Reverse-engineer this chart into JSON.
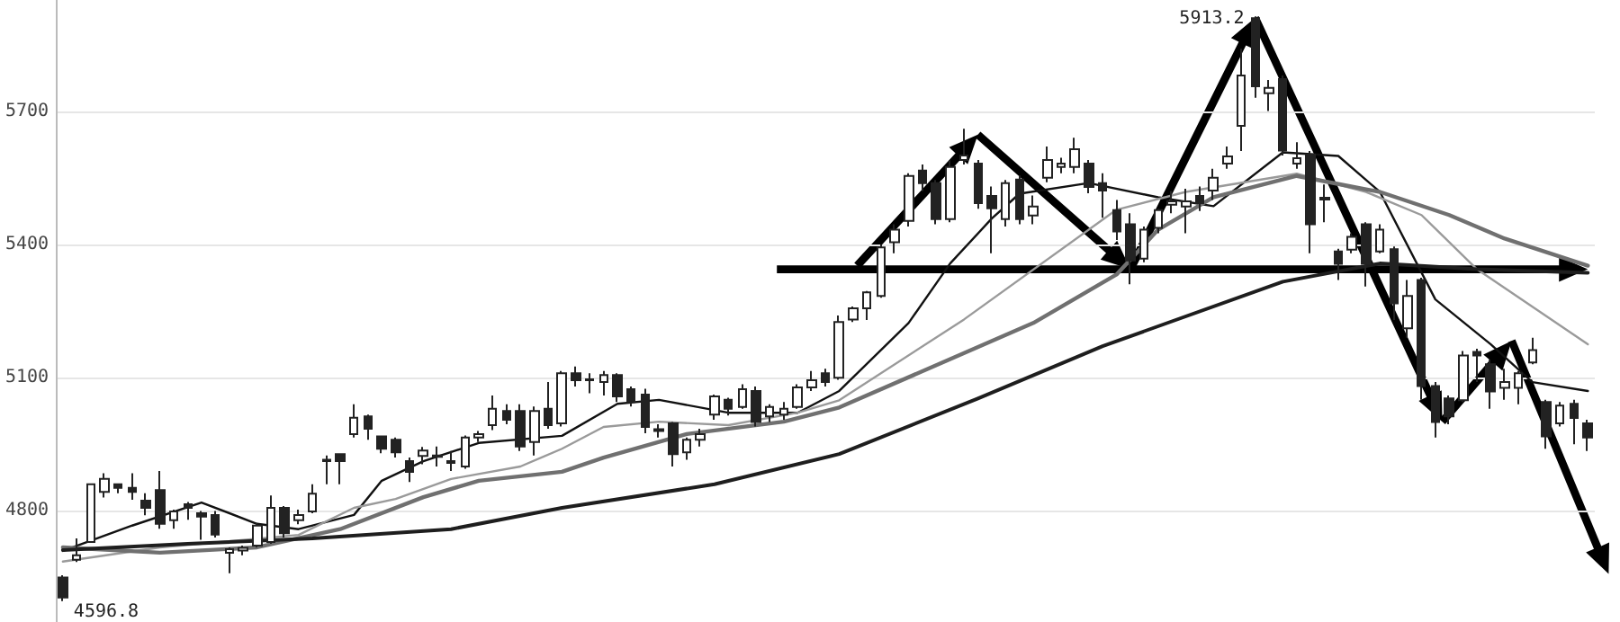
{
  "chart_data": {
    "type": "candlestick",
    "categories": [
      null,
      null,
      null,
      null,
      null,
      null,
      null,
      null,
      null,
      null,
      null,
      null,
      null,
      null,
      null,
      null,
      null,
      null,
      null,
      null,
      null,
      null,
      null,
      null,
      null,
      null,
      null,
      null,
      null,
      null,
      null,
      null,
      null,
      null,
      null,
      null,
      null,
      null,
      null,
      null,
      null,
      null,
      null,
      null,
      null,
      null,
      null,
      null,
      null,
      null,
      null,
      null,
      null,
      null,
      null,
      null,
      null,
      null,
      null,
      null,
      null,
      null,
      null,
      null,
      null,
      null,
      null,
      null,
      null,
      null,
      null,
      null,
      null,
      null,
      null,
      null,
      null,
      null,
      null,
      null,
      null,
      null,
      null,
      null,
      null,
      null,
      null,
      null,
      null,
      null,
      null,
      null,
      null,
      null,
      null,
      null,
      null,
      null,
      null,
      null,
      null,
      null,
      null,
      null,
      null,
      null,
      null,
      null,
      null,
      null,
      null
    ],
    "ohlc": [
      [
        4650,
        4655,
        4596.8,
        4605
      ],
      [
        4690,
        4738,
        4685,
        4700
      ],
      [
        4730,
        4862,
        4728,
        4860
      ],
      [
        4843,
        4885,
        4830,
        4872
      ],
      [
        4860,
        4862,
        4840,
        4852
      ],
      [
        4852,
        4885,
        4825,
        4843
      ],
      [
        4823,
        4840,
        4790,
        4807
      ],
      [
        4847,
        4890,
        4760,
        4771
      ],
      [
        4779,
        4803,
        4760,
        4799
      ],
      [
        4815,
        4820,
        4780,
        4807
      ],
      [
        4795,
        4800,
        4735,
        4787
      ],
      [
        4791,
        4800,
        4740,
        4747
      ],
      [
        4706,
        4718,
        4660,
        4714
      ],
      [
        4711,
        4722,
        4700,
        4717
      ],
      [
        4722,
        4773,
        4718,
        4767
      ],
      [
        4730,
        4835,
        4726,
        4807
      ],
      [
        4807,
        4811,
        4740,
        4750
      ],
      [
        4779,
        4803,
        4770,
        4791
      ],
      [
        4799,
        4860,
        4795,
        4839
      ],
      [
        4912,
        4925,
        4860,
        4915
      ],
      [
        4928,
        4930,
        4860,
        4912
      ],
      [
        4973,
        5040,
        4965,
        5010
      ],
      [
        5013,
        5017,
        4960,
        4985
      ],
      [
        4968,
        4970,
        4930,
        4940
      ],
      [
        4960,
        4965,
        4920,
        4932
      ],
      [
        4912,
        4920,
        4865,
        4888
      ],
      [
        4924,
        4944,
        4905,
        4936
      ],
      [
        4922,
        4945,
        4900,
        4925
      ],
      [
        4908,
        4935,
        4890,
        4912
      ],
      [
        4900,
        4970,
        4895,
        4965
      ],
      [
        4965,
        4980,
        4955,
        4973
      ],
      [
        4993,
        5060,
        4982,
        5030
      ],
      [
        5025,
        5040,
        4995,
        5005
      ],
      [
        5025,
        5040,
        4935,
        4945
      ],
      [
        4955,
        5035,
        4925,
        5025
      ],
      [
        5030,
        5090,
        4985,
        4993
      ],
      [
        4997,
        5115,
        4990,
        5110
      ],
      [
        5110,
        5125,
        5080,
        5094
      ],
      [
        5094,
        5110,
        5065,
        5096
      ],
      [
        5090,
        5115,
        5060,
        5106
      ],
      [
        5106,
        5110,
        5045,
        5058
      ],
      [
        5074,
        5080,
        5035,
        5045
      ],
      [
        5062,
        5075,
        4975,
        4989
      ],
      [
        4980,
        4995,
        4965,
        4984
      ],
      [
        4997,
        5000,
        4900,
        4928
      ],
      [
        4932,
        4965,
        4915,
        4960
      ],
      [
        4960,
        4985,
        4945,
        4973
      ],
      [
        5017,
        5062,
        5005,
        5058
      ],
      [
        5050,
        5055,
        5015,
        5030
      ],
      [
        5034,
        5085,
        5030,
        5074
      ],
      [
        5070,
        5080,
        4990,
        5000
      ],
      [
        5013,
        5040,
        5000,
        5034
      ],
      [
        5017,
        5045,
        5005,
        5030
      ],
      [
        5034,
        5085,
        5030,
        5078
      ],
      [
        5078,
        5115,
        5070,
        5094
      ],
      [
        5110,
        5120,
        5080,
        5090
      ],
      [
        5100,
        5240,
        5095,
        5225
      ],
      [
        5231,
        5260,
        5225,
        5256
      ],
      [
        5256,
        5295,
        5230,
        5292
      ],
      [
        5284,
        5400,
        5280,
        5393
      ],
      [
        5405,
        5445,
        5380,
        5433
      ],
      [
        5453,
        5560,
        5440,
        5554
      ],
      [
        5566,
        5580,
        5520,
        5538
      ],
      [
        5538,
        5545,
        5445,
        5457
      ],
      [
        5457,
        5590,
        5450,
        5574
      ],
      [
        5590,
        5660,
        5580,
        5600
      ],
      [
        5582,
        5590,
        5480,
        5493
      ],
      [
        5509,
        5530,
        5380,
        5481
      ],
      [
        5457,
        5545,
        5440,
        5538
      ],
      [
        5546,
        5555,
        5445,
        5457
      ],
      [
        5465,
        5510,
        5445,
        5485
      ],
      [
        5550,
        5620,
        5540,
        5590
      ],
      [
        5574,
        5595,
        5560,
        5582
      ],
      [
        5574,
        5640,
        5560,
        5614
      ],
      [
        5582,
        5590,
        5515,
        5529
      ],
      [
        5538,
        5560,
        5460,
        5521
      ],
      [
        5477,
        5500,
        5410,
        5429
      ],
      [
        5445,
        5470,
        5310,
        5364
      ],
      [
        5368,
        5440,
        5360,
        5433
      ],
      [
        5437,
        5480,
        5425,
        5477
      ],
      [
        5489,
        5520,
        5470,
        5497
      ],
      [
        5485,
        5525,
        5425,
        5497
      ],
      [
        5509,
        5530,
        5475,
        5493
      ],
      [
        5521,
        5570,
        5500,
        5550
      ],
      [
        5582,
        5620,
        5570,
        5598
      ],
      [
        5667,
        5840,
        5610,
        5780
      ],
      [
        5909,
        5913.2,
        5730,
        5756
      ],
      [
        5740,
        5770,
        5700,
        5752
      ],
      [
        5772,
        5780,
        5600,
        5611
      ],
      [
        5582,
        5630,
        5570,
        5594
      ],
      [
        5602,
        5610,
        5380,
        5445
      ],
      [
        5505,
        5535,
        5450,
        5501
      ],
      [
        5384,
        5390,
        5320,
        5356
      ],
      [
        5388,
        5425,
        5380,
        5417
      ],
      [
        5445,
        5450,
        5305,
        5356
      ],
      [
        5384,
        5445,
        5380,
        5433
      ],
      [
        5389,
        5395,
        5230,
        5267
      ],
      [
        5211,
        5320,
        5190,
        5284
      ],
      [
        5320,
        5325,
        5050,
        5081
      ],
      [
        5081,
        5090,
        4965,
        5000
      ],
      [
        5053,
        5060,
        4995,
        5013
      ],
      [
        5049,
        5160,
        5045,
        5150
      ],
      [
        5158,
        5165,
        5090,
        5150
      ],
      [
        5130,
        5140,
        5030,
        5069
      ],
      [
        5077,
        5120,
        5050,
        5090
      ],
      [
        5077,
        5115,
        5040,
        5110
      ],
      [
        5134,
        5190,
        5130,
        5162
      ],
      [
        5045,
        5050,
        4940,
        4968
      ],
      [
        4997,
        5045,
        4990,
        5037
      ],
      [
        5041,
        5050,
        4950,
        5009
      ],
      [
        4997,
        5005,
        4935,
        4965
      ]
    ],
    "color": "#222222",
    "series": [
      {
        "type": "line",
        "color": "#111111",
        "values": [
          4710,
          null,
          null,
          null,
          null,
          4767,
          null,
          null,
          null,
          null,
          4819,
          null,
          null,
          null,
          4771,
          null,
          null,
          4759,
          null,
          null,
          null,
          4791,
          null,
          4868,
          null,
          null,
          4912,
          null,
          null,
          null,
          4953,
          null,
          null,
          null,
          null,
          null,
          4969,
          null,
          null,
          null,
          5041,
          null,
          null,
          5050,
          null,
          null,
          null,
          null,
          5021,
          null,
          null,
          null,
          null,
          5021,
          null,
          null,
          5070,
          null,
          null,
          null,
          null,
          5223,
          null,
          null,
          5357,
          null,
          null,
          5458,
          null,
          5514,
          null,
          null,
          null,
          null,
          5538,
          null,
          null,
          null,
          null,
          5506,
          null,
          null,
          null,
          5486,
          null,
          null,
          null,
          null,
          5607,
          null,
          null,
          null,
          5599,
          null,
          null,
          5518,
          null,
          null,
          null,
          5276,
          null,
          null,
          null,
          5175,
          null,
          null,
          5090,
          null,
          null,
          null,
          5070
        ]
      },
      {
        "type": "line",
        "color": "#9a9a9a",
        "values": [
          4686,
          null,
          null,
          null,
          null,
          null,
          null,
          4718,
          null,
          null,
          null,
          null,
          null,
          null,
          null,
          null,
          null,
          4746,
          null,
          null,
          null,
          4807,
          null,
          null,
          4827,
          null,
          null,
          null,
          4872,
          null,
          null,
          null,
          null,
          4900,
          null,
          null,
          4940,
          null,
          null,
          4989,
          null,
          null,
          null,
          5001,
          null,
          null,
          null,
          null,
          4993,
          null,
          null,
          null,
          null,
          5021,
          null,
          null,
          5049,
          null,
          null,
          null,
          null,
          null,
          null,
          null,
          null,
          5231,
          null,
          null,
          null,
          null,
          null,
          null,
          null,
          null,
          null,
          null,
          5478,
          null,
          null,
          null,
          null,
          5518,
          null,
          null,
          null,
          null,
          null,
          null,
          null,
          5559,
          null,
          null,
          null,
          null,
          5518,
          null,
          null,
          null,
          5466,
          null,
          null,
          null,
          5344,
          null,
          null,
          null,
          null,
          null,
          null,
          null,
          5175
        ]
      },
      {
        "type": "line",
        "color": "#707070",
        "values": [
          4718,
          null,
          null,
          null,
          null,
          null,
          null,
          4706,
          null,
          null,
          null,
          null,
          null,
          null,
          4718,
          null,
          null,
          null,
          null,
          null,
          4759,
          null,
          null,
          null,
          null,
          null,
          4831,
          null,
          null,
          null,
          4868,
          null,
          null,
          null,
          null,
          null,
          4888,
          null,
          null,
          4920,
          null,
          null,
          null,
          null,
          null,
          4973,
          null,
          null,
          null,
          null,
          null,
          null,
          5001,
          null,
          null,
          null,
          5033,
          null,
          null,
          null,
          null,
          null,
          null,
          null,
          null,
          null,
          null,
          null,
          null,
          null,
          5223,
          null,
          null,
          null,
          null,
          null,
          5332,
          null,
          null,
          5433,
          null,
          null,
          null,
          5506,
          null,
          null,
          null,
          null,
          null,
          5554,
          null,
          null,
          null,
          null,
          null,
          5518,
          null,
          null,
          null,
          null,
          5466,
          null,
          null,
          null,
          5413,
          null,
          null,
          null,
          null,
          null,
          5352
        ]
      },
      {
        "type": "line",
        "color": "#1e1e1e",
        "values": [
          4712,
          null,
          null,
          null,
          null,
          null,
          null,
          null,
          null,
          4726,
          null,
          null,
          null,
          null,
          null,
          null,
          null,
          null,
          4738,
          null,
          null,
          null,
          null,
          null,
          null,
          null,
          null,
          null,
          4759,
          null,
          null,
          null,
          null,
          null,
          null,
          null,
          4807,
          null,
          null,
          null,
          null,
          null,
          null,
          null,
          null,
          null,
          null,
          4860,
          null,
          null,
          null,
          null,
          null,
          null,
          null,
          null,
          4928,
          null,
          null,
          null,
          null,
          null,
          null,
          null,
          null,
          null,
          5053,
          null,
          null,
          null,
          null,
          null,
          null,
          null,
          null,
          5171,
          null,
          null,
          null,
          null,
          null,
          null,
          null,
          null,
          null,
          null,
          null,
          null,
          5316,
          null,
          null,
          null,
          null,
          null,
          null,
          5357,
          null,
          null,
          null,
          null,
          null,
          null,
          5344,
          null,
          null,
          null,
          null,
          null,
          null,
          null,
          5336
        ]
      }
    ],
    "annotations": [
      "5913.2",
      "4596.8"
    ],
    "ylim": [
      4550,
      5950
    ],
    "yticks": [
      4800,
      5100,
      5400,
      5700
    ],
    "tick_labels": "y",
    "grid": "y",
    "line_style": "solid"
  }
}
